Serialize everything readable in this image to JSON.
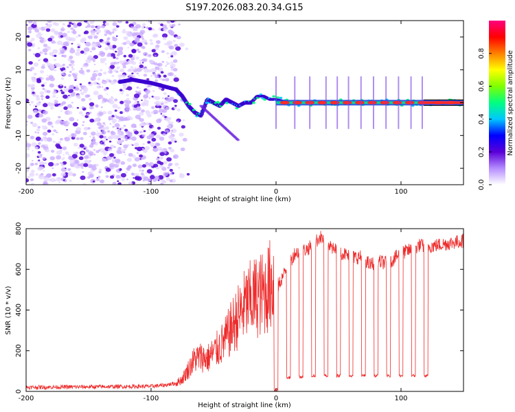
{
  "figure": {
    "title": "S197.2026.083.20.34.G15"
  },
  "chart_data": [
    {
      "type": "heatmap",
      "name": "spectrogram",
      "xlabel": "Height of straight line (km)",
      "ylabel": "Frequency (Hz)",
      "xlim": [
        -200,
        150
      ],
      "ylim": [
        -25,
        25
      ],
      "xticks": [
        -200,
        -100,
        0,
        100
      ],
      "yticks": [
        20,
        10,
        0,
        -10,
        -20
      ],
      "colorbar": {
        "label": "Normalized spectral amplitude",
        "range": [
          0.0,
          1.0
        ],
        "ticks": [
          "0.0",
          "0.2",
          "0.4",
          "0.6",
          "0.8"
        ],
        "colors": [
          "#ffffff",
          "#b48cff",
          "#5a00d8",
          "#0000ff",
          "#00c8ff",
          "#00ff80",
          "#7fff00",
          "#ffff00",
          "#ff8000",
          "#ff0000",
          "#ff0080"
        ]
      },
      "ridge": {
        "x": [
          -130,
          -115,
          -100,
          -90,
          -80,
          -75,
          -70,
          -65,
          -60,
          -55,
          -50,
          -45,
          -40,
          -35,
          -30,
          -25,
          -20,
          -15,
          -10,
          -5,
          0,
          10,
          20,
          40,
          60,
          80,
          100,
          120,
          150
        ],
        "hz": [
          6,
          7,
          6,
          5,
          4,
          2,
          -1,
          -3,
          -4,
          1,
          0,
          -1,
          1,
          0,
          -1,
          0,
          0,
          2,
          2,
          1,
          1,
          0,
          0,
          0,
          0,
          0,
          0,
          0,
          0
        ]
      },
      "bright_segments_x": [
        7,
        17,
        27,
        37,
        47,
        57,
        67,
        77,
        87,
        97,
        107,
        117,
        130,
        140
      ],
      "spike_x": [
        0,
        15,
        27,
        40,
        49,
        58,
        68,
        78,
        88,
        98,
        108,
        117
      ]
    },
    {
      "type": "line",
      "name": "snr",
      "xlabel": "Height of straight line (km)",
      "ylabel": "SNR (10 * v/v)",
      "xlim": [
        -200,
        150
      ],
      "ylim": [
        0,
        800
      ],
      "xticks": [
        -200,
        -100,
        0,
        100
      ],
      "yticks": [
        0,
        200,
        400,
        600,
        800
      ],
      "color": "#ee2a2a",
      "series": [
        {
          "name": "SNR",
          "x": [
            -200,
            -100,
            -90,
            -80,
            -75,
            -70,
            -65,
            -60,
            -55,
            -50,
            -45,
            -40,
            -35,
            -30,
            -25,
            -20,
            -15,
            -10,
            -5,
            -2,
            0,
            2,
            5,
            10,
            15,
            20,
            25,
            30,
            35,
            40,
            45,
            50,
            60,
            70,
            75,
            80,
            90,
            100,
            110,
            115,
            120,
            130,
            140,
            150
          ],
          "y": [
            20,
            25,
            30,
            40,
            60,
            110,
            160,
            170,
            160,
            190,
            220,
            260,
            320,
            370,
            420,
            450,
            470,
            480,
            520,
            550,
            560,
            520,
            560,
            620,
            680,
            690,
            700,
            720,
            760,
            740,
            700,
            690,
            660,
            660,
            620,
            640,
            630,
            680,
            700,
            720,
            710,
            720,
            730,
            740
          ]
        }
      ],
      "dropout_x": [
        0,
        10,
        20,
        30,
        40,
        50,
        60,
        70,
        80,
        90,
        100,
        110,
        120
      ],
      "dropout_floor": [
        0,
        60,
        65,
        70,
        70,
        70,
        70,
        70,
        70,
        70,
        70,
        70,
        70
      ]
    }
  ]
}
